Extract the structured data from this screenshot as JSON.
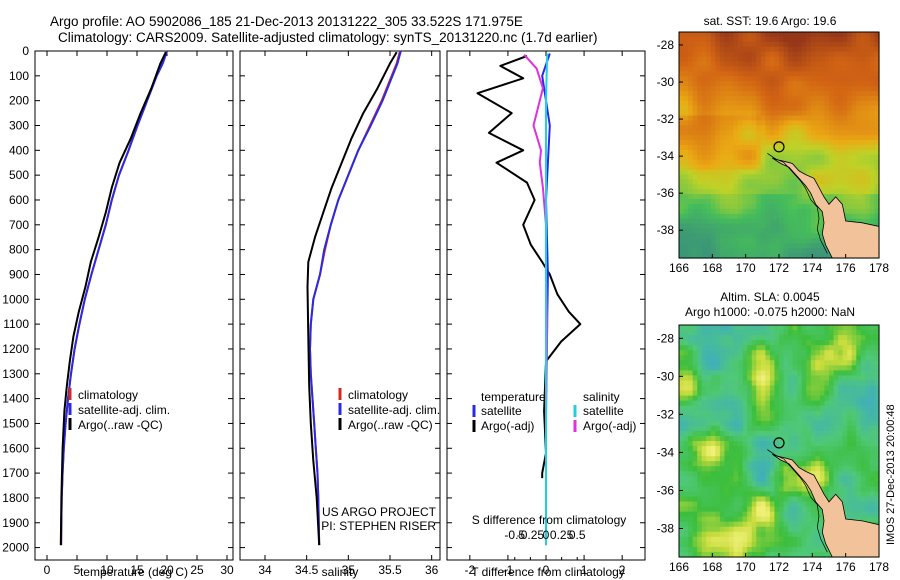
{
  "header": {
    "line1": "Argo profile: AO 5902086_185 21-Dec-2013 20131222_305 33.522S 171.975E",
    "line2": "Climatology: CARS2009. Satellite-adjusted climatology: synTS_20131220.nc (1.7d earlier)"
  },
  "colors": {
    "climatology": "#d42a1e",
    "satellite_adj": "#2a2ae6",
    "argo": "#000000",
    "salinity_satellite": "#20d0e0",
    "salinity_argo": "#e030e0",
    "land": "#f2c39a"
  },
  "chart_data": [
    {
      "type": "line",
      "panel": "temperature",
      "xlabel": "temperature (deg C)",
      "ylabel": "",
      "xlim": [
        -2,
        31
      ],
      "ylim": [
        2050,
        0
      ],
      "xticks": [
        0,
        5,
        10,
        15,
        20,
        25,
        30
      ],
      "yticks": [
        0,
        100,
        200,
        300,
        400,
        500,
        600,
        700,
        800,
        900,
        1000,
        1100,
        1200,
        1300,
        1400,
        1500,
        1600,
        1700,
        1800,
        1900,
        2000
      ],
      "legend": [
        "climatology",
        "satellite-adj. clim.",
        "Argo(..raw -QC)"
      ],
      "series": [
        {
          "name": "climatology",
          "color_key": "climatology",
          "x": [
            19.9,
            19.2,
            18.2,
            16.6,
            15.0,
            13.6,
            12.0,
            10.8,
            9.8,
            8.6,
            7.4,
            6.3,
            5.4,
            4.6,
            4.0,
            3.5,
            3.1,
            2.8,
            2.6,
            2.45,
            2.35
          ],
          "y": [
            0,
            50,
            100,
            200,
            300,
            400,
            500,
            600,
            700,
            800,
            900,
            1000,
            1100,
            1200,
            1300,
            1400,
            1500,
            1600,
            1700,
            1800,
            1990
          ]
        },
        {
          "name": "satellite-adj. clim.",
          "color_key": "satellite_adj",
          "x": [
            20.0,
            19.3,
            18.3,
            16.7,
            15.1,
            13.6,
            12.0,
            10.8,
            9.8,
            8.6,
            7.4,
            6.3,
            5.4,
            4.6,
            4.0,
            3.5,
            3.1,
            2.8,
            2.6,
            2.45,
            2.35
          ],
          "y": [
            0,
            50,
            100,
            200,
            300,
            400,
            500,
            600,
            700,
            800,
            900,
            1000,
            1100,
            1200,
            1300,
            1400,
            1500,
            1600,
            1700,
            1800,
            1990
          ]
        },
        {
          "name": "Argo(..raw -QC)",
          "color_key": "argo",
          "x": [
            19.8,
            18.9,
            17.4,
            15.6,
            14.0,
            12.1,
            10.8,
            9.8,
            8.6,
            7.3,
            6.4,
            5.3,
            4.4,
            3.8,
            3.3,
            2.9,
            2.6,
            2.4,
            2.3
          ],
          "y": [
            5,
            50,
            150,
            250,
            350,
            450,
            550,
            650,
            750,
            850,
            950,
            1050,
            1150,
            1250,
            1350,
            1450,
            1600,
            1800,
            1990
          ]
        }
      ]
    },
    {
      "type": "line",
      "panel": "salinity",
      "xlabel": "salinity",
      "ylabel": "",
      "xlim": [
        33.7,
        36.1
      ],
      "ylim": [
        2050,
        0
      ],
      "xticks": [
        34,
        34.5,
        35,
        35.5,
        36
      ],
      "legend": [
        "climatology",
        "satellite-adj. clim.",
        "Argo(..raw -QC)"
      ],
      "annotation": [
        "US ARGO PROJECT",
        "PI: STEPHEN RISER"
      ],
      "series": [
        {
          "name": "climatology",
          "color_key": "climatology",
          "x": [
            35.62,
            35.58,
            35.52,
            35.4,
            35.26,
            35.12,
            35.0,
            34.88,
            34.79,
            34.72,
            34.66,
            34.58,
            34.55,
            34.54,
            34.55,
            34.57,
            34.59,
            34.61,
            34.63,
            34.64,
            34.65
          ],
          "y": [
            0,
            50,
            100,
            200,
            300,
            400,
            500,
            600,
            700,
            800,
            900,
            1000,
            1100,
            1200,
            1300,
            1400,
            1500,
            1600,
            1700,
            1800,
            1990
          ]
        },
        {
          "name": "satellite-adj. clim.",
          "color_key": "satellite_adj",
          "x": [
            35.63,
            35.59,
            35.53,
            35.41,
            35.27,
            35.12,
            35.0,
            34.88,
            34.79,
            34.71,
            34.66,
            34.58,
            34.55,
            34.54,
            34.55,
            34.57,
            34.59,
            34.61,
            34.63,
            34.64,
            34.65
          ],
          "y": [
            0,
            50,
            100,
            200,
            300,
            400,
            500,
            600,
            700,
            800,
            900,
            1000,
            1100,
            1200,
            1300,
            1400,
            1500,
            1600,
            1700,
            1800,
            1990
          ]
        },
        {
          "name": "Argo(..raw -QC)",
          "color_key": "argo",
          "x": [
            35.58,
            35.5,
            35.35,
            35.18,
            35.04,
            34.92,
            34.8,
            34.7,
            34.6,
            34.52,
            34.51,
            34.52,
            34.53,
            34.55,
            34.58,
            34.62,
            34.65
          ],
          "y": [
            5,
            50,
            150,
            250,
            350,
            450,
            550,
            650,
            750,
            850,
            950,
            1150,
            1350,
            1500,
            1650,
            1800,
            1990
          ]
        }
      ]
    },
    {
      "type": "line",
      "panel": "difference",
      "xlabel": "T difference from climatology",
      "xlabel_top": "S difference from climatology",
      "ylabel": "",
      "xlim": [
        -2.6,
        2.6
      ],
      "ylim": [
        2050,
        0
      ],
      "xticks_T": [
        -2,
        -1,
        0,
        1,
        2
      ],
      "xticks_S": [
        -0.5,
        -0.25,
        0,
        0.25,
        0.5
      ],
      "legend": {
        "temperature": "temperature",
        "salinity": "salinity",
        "satellite": "satellite",
        "argo_adj": "Argo(-adj)"
      },
      "series": [
        {
          "name": "temperature Argo(-adj)",
          "color_key": "argo",
          "x": [
            -0.5,
            -1.2,
            -0.6,
            -1.8,
            -0.9,
            -1.5,
            -0.6,
            -1.3,
            -0.5,
            -0.3,
            -0.6,
            -0.4,
            -0.1,
            0.1,
            0.3,
            0.6,
            0.9,
            0.4,
            0.0,
            -0.05,
            0.0,
            -0.1,
            -0.1
          ],
          "y": [
            20,
            60,
            110,
            170,
            250,
            330,
            400,
            450,
            530,
            600,
            700,
            780,
            850,
            900,
            980,
            1050,
            1100,
            1170,
            1250,
            1450,
            1620,
            1700,
            1720
          ]
        },
        {
          "name": "temperature satellite",
          "color_key": "satellite_adj",
          "x": [
            0.1,
            -0.1,
            0.1,
            0.0,
            0.05,
            0.0,
            0.0
          ],
          "y": [
            10,
            100,
            300,
            600,
            900,
            1400,
            1990
          ]
        },
        {
          "name": "salinity Argo(-adj)",
          "color_key": "salinity_argo",
          "x": [
            -0.35,
            -0.15,
            -0.05,
            -0.2,
            -0.08,
            -0.1,
            -0.05,
            0.0,
            0.0,
            0.02,
            0.0,
            0.0
          ],
          "y": [
            15,
            70,
            150,
            300,
            400,
            450,
            550,
            700,
            900,
            1100,
            1500,
            1990
          ]
        },
        {
          "name": "salinity satellite",
          "color_key": "salinity_satellite",
          "x": [
            0.02,
            0.0,
            0.0,
            0.0
          ],
          "y": [
            10,
            200,
            1000,
            1990
          ]
        }
      ]
    }
  ],
  "maps": [
    {
      "title": "sat. SST: 19.6 Argo: 19.6",
      "xticks": [
        "166",
        "168",
        "170",
        "172",
        "174",
        "176",
        "178"
      ],
      "yticks": [
        "-28",
        "-30",
        "-32",
        "-34",
        "-36",
        "-38"
      ],
      "xlim": [
        166,
        178
      ],
      "ylim": [
        -39.5,
        -27.3
      ],
      "argo_lon": 172.0,
      "argo_lat": -33.5,
      "colormap": "warm"
    },
    {
      "title_line1": "Altim. SLA: 0.0045",
      "title_line2": "Argo h1000: -0.075 h2000: NaN",
      "xticks": [
        "166",
        "168",
        "170",
        "172",
        "174",
        "176",
        "178"
      ],
      "yticks": [
        "-28",
        "-30",
        "-32",
        "-34",
        "-36",
        "-38"
      ],
      "xlim": [
        166,
        178
      ],
      "ylim": [
        -39.5,
        -27.3
      ],
      "argo_lon": 172.0,
      "argo_lat": -33.5,
      "colormap": "cool"
    }
  ],
  "watermark": "IMOS 27-Dec-2013 20:00:48"
}
